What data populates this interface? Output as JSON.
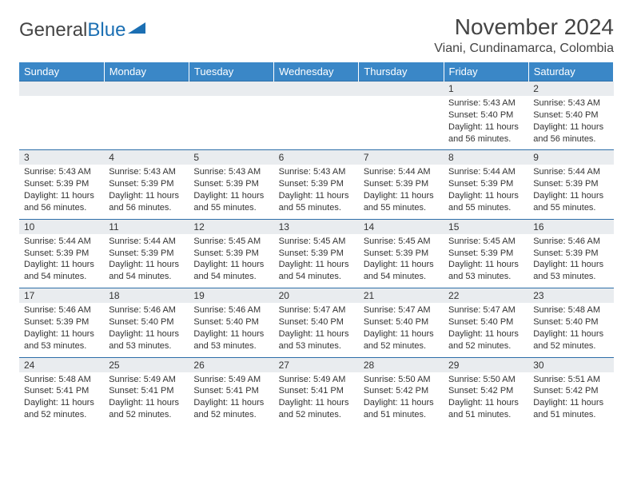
{
  "logo": {
    "word1": "General",
    "word2": "Blue"
  },
  "title": "November 2024",
  "location": "Viani, Cundinamarca, Colombia",
  "colors": {
    "header_bg": "#3a87c7",
    "header_text": "#ffffff",
    "daynum_bg": "#e9ecef",
    "rule": "#2d6ea8",
    "logo_blue": "#1b6fb3"
  },
  "days_of_week": [
    "Sunday",
    "Monday",
    "Tuesday",
    "Wednesday",
    "Thursday",
    "Friday",
    "Saturday"
  ],
  "weeks": [
    [
      null,
      null,
      null,
      null,
      null,
      {
        "n": "1",
        "sr": "Sunrise: 5:43 AM",
        "ss": "Sunset: 5:40 PM",
        "dl": "Daylight: 11 hours and 56 minutes."
      },
      {
        "n": "2",
        "sr": "Sunrise: 5:43 AM",
        "ss": "Sunset: 5:40 PM",
        "dl": "Daylight: 11 hours and 56 minutes."
      }
    ],
    [
      {
        "n": "3",
        "sr": "Sunrise: 5:43 AM",
        "ss": "Sunset: 5:39 PM",
        "dl": "Daylight: 11 hours and 56 minutes."
      },
      {
        "n": "4",
        "sr": "Sunrise: 5:43 AM",
        "ss": "Sunset: 5:39 PM",
        "dl": "Daylight: 11 hours and 56 minutes."
      },
      {
        "n": "5",
        "sr": "Sunrise: 5:43 AM",
        "ss": "Sunset: 5:39 PM",
        "dl": "Daylight: 11 hours and 55 minutes."
      },
      {
        "n": "6",
        "sr": "Sunrise: 5:43 AM",
        "ss": "Sunset: 5:39 PM",
        "dl": "Daylight: 11 hours and 55 minutes."
      },
      {
        "n": "7",
        "sr": "Sunrise: 5:44 AM",
        "ss": "Sunset: 5:39 PM",
        "dl": "Daylight: 11 hours and 55 minutes."
      },
      {
        "n": "8",
        "sr": "Sunrise: 5:44 AM",
        "ss": "Sunset: 5:39 PM",
        "dl": "Daylight: 11 hours and 55 minutes."
      },
      {
        "n": "9",
        "sr": "Sunrise: 5:44 AM",
        "ss": "Sunset: 5:39 PM",
        "dl": "Daylight: 11 hours and 55 minutes."
      }
    ],
    [
      {
        "n": "10",
        "sr": "Sunrise: 5:44 AM",
        "ss": "Sunset: 5:39 PM",
        "dl": "Daylight: 11 hours and 54 minutes."
      },
      {
        "n": "11",
        "sr": "Sunrise: 5:44 AM",
        "ss": "Sunset: 5:39 PM",
        "dl": "Daylight: 11 hours and 54 minutes."
      },
      {
        "n": "12",
        "sr": "Sunrise: 5:45 AM",
        "ss": "Sunset: 5:39 PM",
        "dl": "Daylight: 11 hours and 54 minutes."
      },
      {
        "n": "13",
        "sr": "Sunrise: 5:45 AM",
        "ss": "Sunset: 5:39 PM",
        "dl": "Daylight: 11 hours and 54 minutes."
      },
      {
        "n": "14",
        "sr": "Sunrise: 5:45 AM",
        "ss": "Sunset: 5:39 PM",
        "dl": "Daylight: 11 hours and 54 minutes."
      },
      {
        "n": "15",
        "sr": "Sunrise: 5:45 AM",
        "ss": "Sunset: 5:39 PM",
        "dl": "Daylight: 11 hours and 53 minutes."
      },
      {
        "n": "16",
        "sr": "Sunrise: 5:46 AM",
        "ss": "Sunset: 5:39 PM",
        "dl": "Daylight: 11 hours and 53 minutes."
      }
    ],
    [
      {
        "n": "17",
        "sr": "Sunrise: 5:46 AM",
        "ss": "Sunset: 5:39 PM",
        "dl": "Daylight: 11 hours and 53 minutes."
      },
      {
        "n": "18",
        "sr": "Sunrise: 5:46 AM",
        "ss": "Sunset: 5:40 PM",
        "dl": "Daylight: 11 hours and 53 minutes."
      },
      {
        "n": "19",
        "sr": "Sunrise: 5:46 AM",
        "ss": "Sunset: 5:40 PM",
        "dl": "Daylight: 11 hours and 53 minutes."
      },
      {
        "n": "20",
        "sr": "Sunrise: 5:47 AM",
        "ss": "Sunset: 5:40 PM",
        "dl": "Daylight: 11 hours and 53 minutes."
      },
      {
        "n": "21",
        "sr": "Sunrise: 5:47 AM",
        "ss": "Sunset: 5:40 PM",
        "dl": "Daylight: 11 hours and 52 minutes."
      },
      {
        "n": "22",
        "sr": "Sunrise: 5:47 AM",
        "ss": "Sunset: 5:40 PM",
        "dl": "Daylight: 11 hours and 52 minutes."
      },
      {
        "n": "23",
        "sr": "Sunrise: 5:48 AM",
        "ss": "Sunset: 5:40 PM",
        "dl": "Daylight: 11 hours and 52 minutes."
      }
    ],
    [
      {
        "n": "24",
        "sr": "Sunrise: 5:48 AM",
        "ss": "Sunset: 5:41 PM",
        "dl": "Daylight: 11 hours and 52 minutes."
      },
      {
        "n": "25",
        "sr": "Sunrise: 5:49 AM",
        "ss": "Sunset: 5:41 PM",
        "dl": "Daylight: 11 hours and 52 minutes."
      },
      {
        "n": "26",
        "sr": "Sunrise: 5:49 AM",
        "ss": "Sunset: 5:41 PM",
        "dl": "Daylight: 11 hours and 52 minutes."
      },
      {
        "n": "27",
        "sr": "Sunrise: 5:49 AM",
        "ss": "Sunset: 5:41 PM",
        "dl": "Daylight: 11 hours and 52 minutes."
      },
      {
        "n": "28",
        "sr": "Sunrise: 5:50 AM",
        "ss": "Sunset: 5:42 PM",
        "dl": "Daylight: 11 hours and 51 minutes."
      },
      {
        "n": "29",
        "sr": "Sunrise: 5:50 AM",
        "ss": "Sunset: 5:42 PM",
        "dl": "Daylight: 11 hours and 51 minutes."
      },
      {
        "n": "30",
        "sr": "Sunrise: 5:51 AM",
        "ss": "Sunset: 5:42 PM",
        "dl": "Daylight: 11 hours and 51 minutes."
      }
    ]
  ]
}
